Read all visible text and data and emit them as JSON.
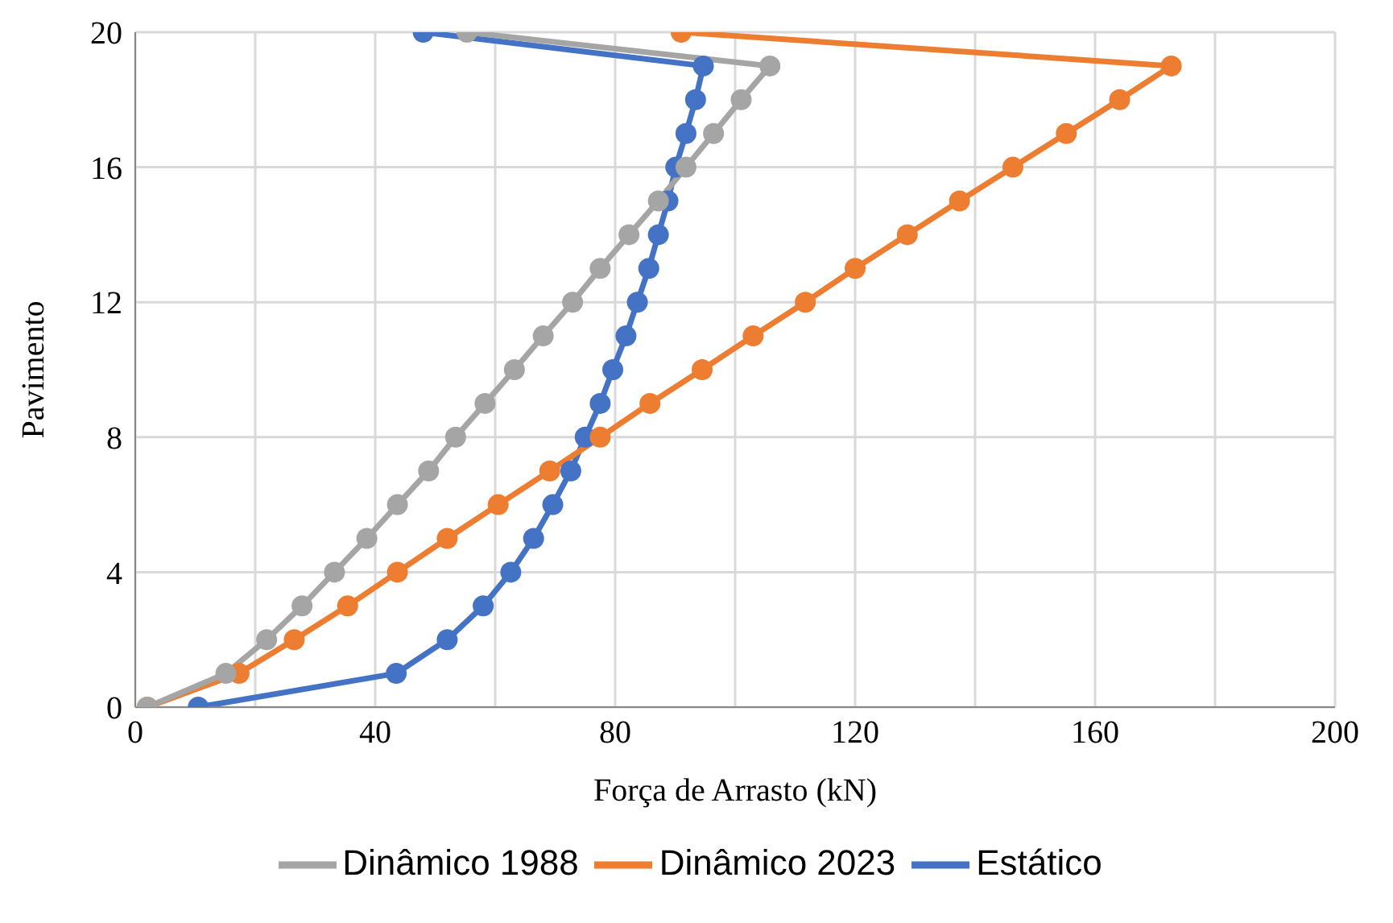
{
  "chart_data": {
    "type": "line",
    "xlabel": "Força de Arrasto (kN)",
    "ylabel": "Pavimento",
    "xlim": [
      0,
      200
    ],
    "xticks": [
      0,
      {
        "value": 20,
        "label": null
      },
      40,
      {
        "value": 60,
        "label": null
      },
      80,
      {
        "value": 100,
        "label": null
      },
      120,
      {
        "value": 140,
        "label": null
      },
      160,
      {
        "value": 180,
        "label": null
      },
      200
    ],
    "ylim": [
      0,
      20
    ],
    "yticks": [
      0,
      4,
      8,
      12,
      16,
      20
    ],
    "grid": true,
    "legend": "bottom",
    "marker": "circle",
    "line_style": "solid",
    "series": [
      {
        "name": "Estático",
        "color": "#4472c4",
        "x": [
          10.5,
          43.5,
          52,
          58,
          62.6,
          66.4,
          69.6,
          72.6,
          75,
          77.5,
          79.6,
          81.8,
          83.7,
          85.6,
          87.2,
          88.8,
          90.1,
          91.8,
          93.4,
          94.7,
          48
        ],
        "values": [
          0,
          1,
          2,
          3,
          4,
          5,
          6,
          7,
          8,
          9,
          10,
          11,
          12,
          13,
          14,
          15,
          16,
          17,
          18,
          19,
          20
        ]
      },
      {
        "name": "Dinâmico 2023",
        "color": "#ed7d31",
        "x": [
          2,
          17.3,
          26.5,
          35.4,
          43.7,
          52,
          60.5,
          69.1,
          77.5,
          85.8,
          94.5,
          103,
          111.7,
          120,
          128.7,
          137.4,
          146.3,
          155.2,
          164.1,
          172.7,
          91
        ],
        "values": [
          0,
          1,
          2,
          3,
          4,
          5,
          6,
          7,
          8,
          9,
          10,
          11,
          12,
          13,
          14,
          15,
          16,
          17,
          18,
          19,
          20
        ]
      },
      {
        "name": "Dinâmico 1988",
        "color": "#a5a5a5",
        "x": [
          2,
          15.1,
          21.9,
          27.8,
          33.2,
          38.6,
          43.7,
          48.9,
          53.4,
          58.3,
          63.2,
          68,
          72.9,
          77.5,
          82.3,
          87.2,
          91.8,
          96.4,
          101,
          105.8,
          55.3
        ],
        "values": [
          0,
          1,
          2,
          3,
          4,
          5,
          6,
          7,
          8,
          9,
          10,
          11,
          12,
          13,
          14,
          15,
          16,
          17,
          18,
          19,
          20
        ]
      }
    ]
  }
}
